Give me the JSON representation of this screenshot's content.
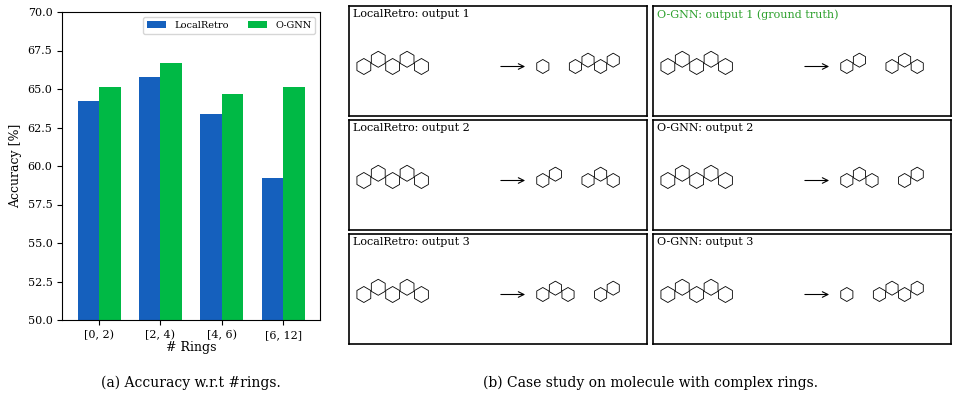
{
  "chart_data": {
    "type": "bar",
    "caption": "(a) Accuracy w.r.t #rings.",
    "x_label": "# Rings",
    "y_label": "Accuracy [%]",
    "categories": [
      "[0, 2)",
      "[2, 4)",
      "[4, 6)",
      "[6, 12]"
    ],
    "series": [
      {
        "name": "LocalRetro",
        "color": "#1560bd",
        "values": [
          64.2,
          65.8,
          63.4,
          59.2
        ]
      },
      {
        "name": "O-GNN",
        "color": "#00b945",
        "values": [
          65.1,
          66.7,
          64.7,
          65.1
        ]
      }
    ],
    "ylim": [
      50,
      70
    ],
    "yticks": [
      {
        "value": 50,
        "label": "50.0"
      },
      {
        "value": 52.5,
        "label": "52.5"
      },
      {
        "value": 55,
        "label": "55.0"
      },
      {
        "value": 57.5,
        "label": "57.5"
      },
      {
        "value": 60,
        "label": "60.0"
      },
      {
        "value": 62.5,
        "label": "62.5"
      },
      {
        "value": 65,
        "label": "65.0"
      },
      {
        "value": 67.5,
        "label": "67.5"
      },
      {
        "value": 70,
        "label": "70.0"
      }
    ],
    "legend": "upper right",
    "grid": false
  },
  "case_study": {
    "caption": "(b) Case study on molecule with complex rings.",
    "columns": [
      {
        "outputs": [
          {
            "title": "LocalRetro: output 1"
          },
          {
            "title": "LocalRetro: output 2"
          },
          {
            "title": "LocalRetro: output 3"
          }
        ]
      },
      {
        "outputs": [
          {
            "title": "O-GNN: output 1 (ground truth)",
            "color": "#2ca02c"
          },
          {
            "title": "O-GNN: output 2"
          },
          {
            "title": "O-GNN: output 3"
          }
        ]
      }
    ]
  }
}
